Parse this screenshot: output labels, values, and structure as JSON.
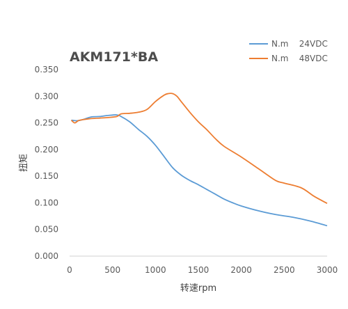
{
  "chart_data": {
    "type": "line",
    "title": "AKM171*BA",
    "xlabel": "转速rpm",
    "ylabel": "扭矩",
    "xlim": [
      0,
      3000
    ],
    "ylim": [
      0,
      0.35
    ],
    "x_ticks": [
      "0",
      "500",
      "1000",
      "1500",
      "2000",
      "2500",
      "3000"
    ],
    "y_ticks": [
      "0.000",
      "0.050",
      "0.100",
      "0.150",
      "0.200",
      "0.250",
      "0.300",
      "0.350"
    ],
    "grid": false,
    "legend_position": "top-right",
    "series": [
      {
        "name": "N.m    24VDC",
        "color": "#5b9bd5",
        "x": [
          20,
          80,
          150,
          250,
          350,
          450,
          550,
          600,
          700,
          800,
          900,
          1000,
          1100,
          1200,
          1300,
          1400,
          1500,
          1600,
          1700,
          1800,
          1900,
          2000,
          2200,
          2400,
          2600,
          2800,
          3000
        ],
        "y": [
          0.255,
          0.254,
          0.256,
          0.261,
          0.262,
          0.264,
          0.265,
          0.262,
          0.252,
          0.238,
          0.225,
          0.208,
          0.187,
          0.166,
          0.152,
          0.142,
          0.134,
          0.125,
          0.116,
          0.107,
          0.1,
          0.094,
          0.085,
          0.078,
          0.073,
          0.066,
          0.057
        ]
      },
      {
        "name": "N.m    48VDC",
        "color": "#ed7d31",
        "x": [
          20,
          60,
          100,
          150,
          250,
          350,
          450,
          550,
          600,
          700,
          800,
          900,
          1000,
          1100,
          1150,
          1200,
          1250,
          1300,
          1400,
          1500,
          1600,
          1700,
          1800,
          2000,
          2200,
          2400,
          2500,
          2700,
          2850,
          3000
        ],
        "y": [
          0.255,
          0.25,
          0.254,
          0.256,
          0.258,
          0.259,
          0.26,
          0.262,
          0.267,
          0.268,
          0.27,
          0.275,
          0.29,
          0.302,
          0.305,
          0.305,
          0.3,
          0.29,
          0.27,
          0.252,
          0.237,
          0.22,
          0.206,
          0.186,
          0.164,
          0.142,
          0.137,
          0.128,
          0.112,
          0.099
        ]
      }
    ]
  }
}
